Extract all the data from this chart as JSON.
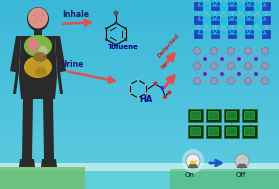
{
  "bg_top": "#3ab8d8",
  "bg_bottom": "#55c8dc",
  "ground_left_color": "#7ec87e",
  "water_color": "#a8e4e8",
  "labels": {
    "inhale": "Inhale",
    "toluene": "Toluene",
    "urine": "Urine",
    "ha": "HA",
    "on": "On",
    "off": "Off"
  },
  "arrow_color": "#e05050",
  "blue_arrow_color": "#1a56c8",
  "figure_width": 2.79,
  "figure_height": 1.89,
  "dpi": 100,
  "body_color": "#2a2a2a",
  "organ_yellow": "#d4b020",
  "organ_green": "#88c848",
  "organ_brown": "#8a6030",
  "organ_pink": "#e87890",
  "organ_white": "#d8d0b8",
  "head_pink": "#f0a090",
  "mof1_node": "#3040c0",
  "mof1_link": "#70a8e0",
  "mof1_cyan": "#50c8d0",
  "mof2_node": "#9080c8",
  "mof2_link": "#a0b0c8",
  "mof3_node_dark": "#184820",
  "mof3_node_bright": "#28a848",
  "mof3_link": "#8898a8"
}
